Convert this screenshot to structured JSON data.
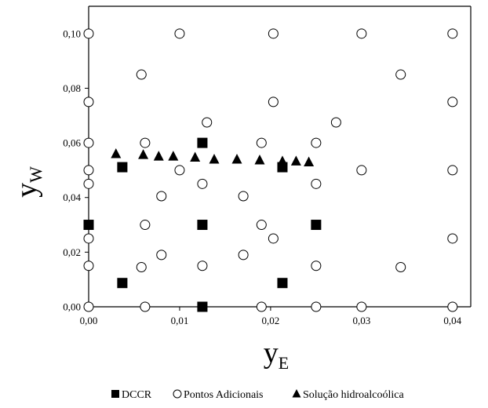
{
  "chart_data": {
    "type": "scatter",
    "title": "",
    "xlabel": {
      "main": "y",
      "sub": "E"
    },
    "ylabel": {
      "main": "y",
      "sub": "W"
    },
    "xlim": [
      0,
      0.042
    ],
    "ylim": [
      0,
      0.11
    ],
    "grid": false,
    "legend_position": "bottom",
    "x_ticks": [
      0,
      0.01,
      0.02,
      0.03,
      0.04
    ],
    "x_tick_labels": [
      "0,00",
      "0,01",
      "0,02",
      "0,03",
      "0,04"
    ],
    "y_ticks": [
      0,
      0.02,
      0.04,
      0.06,
      0.08,
      0.1
    ],
    "y_tick_labels": [
      "0,00",
      "0,02",
      "0,04",
      "0,06",
      "0,08",
      "0,10"
    ],
    "series": [
      {
        "name": "DCCR",
        "marker": "square",
        "color": "#000000",
        "points": [
          [
            0.0,
            0.03
          ],
          [
            0.0037,
            0.0511
          ],
          [
            0.0037,
            0.0087
          ],
          [
            0.0125,
            0.06
          ],
          [
            0.0125,
            0.03
          ],
          [
            0.0125,
            0.0
          ],
          [
            0.0213,
            0.0511
          ],
          [
            0.0213,
            0.0087
          ],
          [
            0.025,
            0.03
          ]
        ]
      },
      {
        "name": "Pontos Adicionais",
        "marker": "circle",
        "color": "#000000",
        "points": [
          [
            0.0,
            0.1
          ],
          [
            0.0,
            0.075
          ],
          [
            0.0,
            0.06
          ],
          [
            0.0,
            0.05
          ],
          [
            0.0,
            0.045
          ],
          [
            0.0,
            0.025
          ],
          [
            0.0,
            0.015
          ],
          [
            0.0,
            0.0
          ],
          [
            0.0058,
            0.085
          ],
          [
            0.0058,
            0.0145
          ],
          [
            0.0062,
            0.06
          ],
          [
            0.0062,
            0.03
          ],
          [
            0.0062,
            0.0
          ],
          [
            0.008,
            0.0405
          ],
          [
            0.008,
            0.019
          ],
          [
            0.01,
            0.1
          ],
          [
            0.01,
            0.05
          ],
          [
            0.0125,
            0.045
          ],
          [
            0.0125,
            0.015
          ],
          [
            0.013,
            0.0675
          ],
          [
            0.017,
            0.0405
          ],
          [
            0.017,
            0.019
          ],
          [
            0.019,
            0.06
          ],
          [
            0.019,
            0.03
          ],
          [
            0.019,
            0.0
          ],
          [
            0.0203,
            0.1
          ],
          [
            0.0203,
            0.075
          ],
          [
            0.0203,
            0.025
          ],
          [
            0.025,
            0.06
          ],
          [
            0.025,
            0.045
          ],
          [
            0.025,
            0.015
          ],
          [
            0.025,
            0.0
          ],
          [
            0.0272,
            0.0675
          ],
          [
            0.03,
            0.1
          ],
          [
            0.03,
            0.05
          ],
          [
            0.03,
            0.0
          ],
          [
            0.0343,
            0.085
          ],
          [
            0.0343,
            0.0145
          ],
          [
            0.04,
            0.1
          ],
          [
            0.04,
            0.075
          ],
          [
            0.04,
            0.05
          ],
          [
            0.04,
            0.025
          ],
          [
            0.04,
            0.0
          ]
        ]
      },
      {
        "name": "Solução hidroalcoólica",
        "marker": "triangle",
        "color": "#000000",
        "points": [
          [
            0.003,
            0.056
          ],
          [
            0.006,
            0.0557
          ],
          [
            0.0077,
            0.0551
          ],
          [
            0.0093,
            0.0551
          ],
          [
            0.0117,
            0.0547
          ],
          [
            0.0138,
            0.054
          ],
          [
            0.0163,
            0.054
          ],
          [
            0.0188,
            0.0537
          ],
          [
            0.0213,
            0.0533
          ],
          [
            0.0228,
            0.0533
          ],
          [
            0.0242,
            0.053
          ]
        ]
      }
    ]
  }
}
